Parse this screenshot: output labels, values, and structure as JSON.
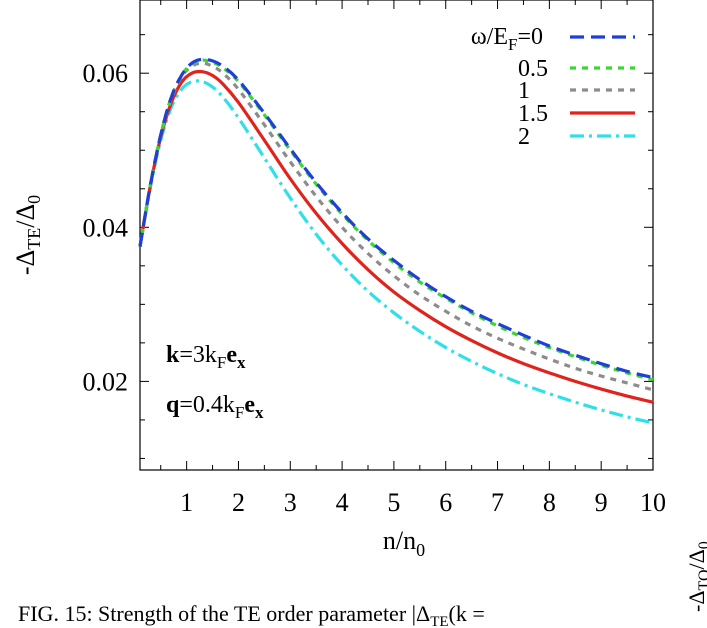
{
  "chart_data": {
    "type": "line",
    "xlabel": "n/n",
    "xlabel_sub": "0",
    "ylabel_prefix": "-Δ",
    "ylabel_sub": "TE",
    "ylabel_mid": "/Δ",
    "ylabel_sub2": "0",
    "xlim": [
      0.1,
      10
    ],
    "ylim": [
      0.0085,
      0.0695
    ],
    "xticks": [
      1,
      2,
      3,
      4,
      5,
      6,
      7,
      8,
      9,
      10
    ],
    "xtick_labels": [
      "1",
      "2",
      "3",
      "4",
      "5",
      "6",
      "7",
      "8",
      "9",
      "10"
    ],
    "yticks": [
      0.02,
      0.04,
      0.06
    ],
    "ytick_labels": [
      "0.02",
      "0.04",
      "0.06"
    ],
    "legend_title": "ω/E",
    "legend_title_sub": "F",
    "legend_title_suffix": "=0",
    "legend_position": "top-right",
    "series": [
      {
        "name": "0",
        "color": "#1f3fd8",
        "dash": "14,7",
        "x": [
          0.1,
          0.3,
          0.5,
          0.7,
          0.9,
          1.1,
          1.3,
          1.5,
          1.7,
          2,
          2.5,
          3,
          3.5,
          4,
          4.5,
          5,
          5.5,
          6,
          6.5,
          7,
          7.5,
          8,
          8.5,
          9,
          9.5,
          10
        ],
        "y": [
          0.0375,
          0.0455,
          0.052,
          0.0568,
          0.0597,
          0.0613,
          0.0618,
          0.0616,
          0.0609,
          0.0591,
          0.0548,
          0.0502,
          0.0458,
          0.0419,
          0.0385,
          0.0357,
          0.0332,
          0.031,
          0.0291,
          0.0275,
          0.026,
          0.0246,
          0.0234,
          0.0223,
          0.0213,
          0.0205
        ]
      },
      {
        "name": "0.5",
        "color": "#38d82e",
        "dash": "6,6",
        "x": [
          0.1,
          0.3,
          0.5,
          0.7,
          0.9,
          1.1,
          1.3,
          1.5,
          1.7,
          2,
          2.5,
          3,
          3.5,
          4,
          4.5,
          5,
          5.5,
          6,
          6.5,
          7,
          7.5,
          8,
          8.5,
          9,
          9.5,
          10
        ],
        "y": [
          0.0375,
          0.0455,
          0.052,
          0.0568,
          0.0597,
          0.0612,
          0.0617,
          0.0614,
          0.0607,
          0.0589,
          0.0546,
          0.05,
          0.0456,
          0.0417,
          0.0383,
          0.0354,
          0.0329,
          0.0308,
          0.0289,
          0.0272,
          0.0257,
          0.0244,
          0.0232,
          0.0221,
          0.0211,
          0.0202
        ]
      },
      {
        "name": "1",
        "color": "#8c8c8c",
        "dash": "6,6",
        "x": [
          0.1,
          0.3,
          0.5,
          0.7,
          0.9,
          1.1,
          1.3,
          1.5,
          1.7,
          2,
          2.5,
          3,
          3.5,
          4,
          4.5,
          5,
          5.5,
          6,
          6.5,
          7,
          7.5,
          8,
          8.5,
          9,
          9.5,
          10
        ],
        "y": [
          0.0375,
          0.0455,
          0.0519,
          0.0566,
          0.0595,
          0.0609,
          0.0613,
          0.0609,
          0.06,
          0.0579,
          0.0533,
          0.0485,
          0.044,
          0.04,
          0.0366,
          0.0337,
          0.0312,
          0.0291,
          0.0272,
          0.0256,
          0.0242,
          0.0229,
          0.0217,
          0.0207,
          0.0198,
          0.0189
        ]
      },
      {
        "name": "1.5",
        "color": "#e0231c",
        "dash": "",
        "x": [
          0.1,
          0.3,
          0.5,
          0.7,
          0.9,
          1.1,
          1.3,
          1.5,
          1.7,
          2,
          2.5,
          3,
          3.5,
          4,
          4.5,
          5,
          5.5,
          6,
          6.5,
          7,
          7.5,
          8,
          8.5,
          9,
          9.5,
          10
        ],
        "y": [
          0.0375,
          0.0454,
          0.0517,
          0.0561,
          0.0588,
          0.06,
          0.0602,
          0.0597,
          0.0586,
          0.0562,
          0.0513,
          0.0463,
          0.0418,
          0.0379,
          0.0345,
          0.0316,
          0.0292,
          0.0271,
          0.0253,
          0.0237,
          0.0223,
          0.0211,
          0.02,
          0.019,
          0.0181,
          0.0173
        ]
      },
      {
        "name": "2",
        "color": "#2ee0e8",
        "dash": "14,5,3,5",
        "x": [
          0.1,
          0.3,
          0.5,
          0.7,
          0.9,
          1.1,
          1.3,
          1.5,
          1.7,
          2,
          2.5,
          3,
          3.5,
          4,
          4.5,
          5,
          5.5,
          6,
          6.5,
          7,
          7.5,
          8,
          8.5,
          9,
          9.5,
          10
        ],
        "y": [
          0.0375,
          0.0452,
          0.0513,
          0.0555,
          0.0579,
          0.0589,
          0.0589,
          0.0582,
          0.0569,
          0.0542,
          0.049,
          0.0438,
          0.0391,
          0.0351,
          0.0317,
          0.0289,
          0.0265,
          0.0244,
          0.0226,
          0.021,
          0.0196,
          0.0184,
          0.0173,
          0.0163,
          0.0154,
          0.0146
        ]
      }
    ],
    "annotations": [
      {
        "bold": "k",
        "mid": "=3k",
        "sub": "F",
        "bold2": "e",
        "sub2": "x"
      },
      {
        "bold": "q",
        "mid": "=0.4k",
        "sub": "F",
        "bold2": "e",
        "sub2": "x"
      }
    ]
  },
  "caption": {
    "text": "FIG. 15:  Strength of the TE order parameter |Δ",
    "sub": "TE",
    "tail": "(k  ="
  },
  "edge_label": {
    "prefix": "-Δ",
    "sub": "TO",
    "mid": "/Δ",
    "sub2": "0"
  }
}
